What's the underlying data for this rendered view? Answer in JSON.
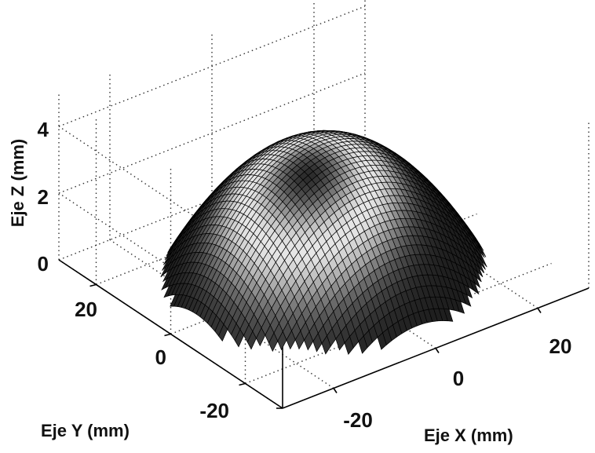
{
  "chart_data": {
    "type": "surface3d",
    "title": "",
    "xlabel": "Eje X (mm)",
    "ylabel": "Eje Y (mm)",
    "zlabel": "Eje Z (mm)",
    "x_ticks": [
      "-20",
      "0",
      "20"
    ],
    "y_ticks": [
      "-20",
      "0",
      "20"
    ],
    "z_ticks": [
      "0",
      "2",
      "4"
    ],
    "xlim": [
      -30,
      30
    ],
    "ylim": [
      -30,
      30
    ],
    "zlim": [
      0,
      5
    ],
    "grid": true,
    "surface": {
      "shape": "spherical-cap dome",
      "base_radius": 26,
      "peak_height": 3.9,
      "color": "#000000",
      "highlight": "#ffffff"
    }
  }
}
